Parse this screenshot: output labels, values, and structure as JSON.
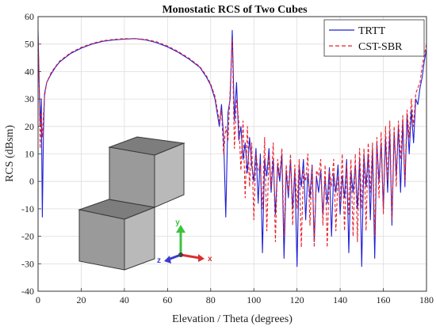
{
  "chart_data": {
    "type": "line",
    "title": "Monostatic RCS of Two Cubes",
    "xlabel": "Elevation / Theta (degrees)",
    "ylabel": "RCS (dBsm)",
    "xlim": [
      0,
      180
    ],
    "ylim": [
      -40,
      60
    ],
    "xticks": [
      0,
      20,
      40,
      60,
      80,
      100,
      120,
      140,
      160,
      180
    ],
    "yticks": [
      -40,
      -30,
      -20,
      -10,
      0,
      10,
      20,
      30,
      40,
      50,
      60
    ],
    "grid": true,
    "legend_position": "top-right",
    "series": [
      {
        "name": "TRTT",
        "color": "#1f1fd6",
        "style": "solid",
        "x": [
          0,
          0.5,
          1,
          1.5,
          2,
          2.5,
          3,
          4,
          6,
          8,
          10,
          15,
          20,
          25,
          30,
          35,
          40,
          45,
          50,
          55,
          60,
          65,
          70,
          75,
          78,
          80,
          82,
          84,
          85,
          86,
          87,
          88,
          89,
          90,
          91,
          92,
          93,
          94,
          95,
          96,
          97,
          98,
          99,
          100,
          101,
          102,
          103,
          104,
          105,
          106,
          107,
          108,
          109,
          110,
          111,
          112,
          113,
          114,
          115,
          116,
          117,
          118,
          119,
          120,
          121,
          122,
          123,
          124,
          125,
          126,
          127,
          128,
          129,
          130,
          131,
          132,
          133,
          134,
          135,
          136,
          137,
          138,
          139,
          140,
          141,
          142,
          143,
          144,
          145,
          146,
          147,
          148,
          149,
          150,
          151,
          152,
          153,
          154,
          155,
          156,
          157,
          158,
          159,
          160,
          161,
          162,
          163,
          164,
          165,
          166,
          167,
          168,
          169,
          170,
          171,
          172,
          173,
          174,
          175,
          176,
          177,
          178,
          179,
          180
        ],
        "y": [
          55,
          35,
          20,
          30,
          -13,
          18,
          32,
          36,
          39,
          41.5,
          43.5,
          46.5,
          48.5,
          50,
          51,
          51.5,
          51.8,
          52,
          51.5,
          50.5,
          49,
          47,
          44.5,
          41.5,
          38,
          35,
          30,
          20,
          28,
          16,
          -13,
          25,
          30,
          55,
          22,
          36,
          15,
          20,
          8,
          14,
          3,
          16,
          6,
          0,
          12,
          -8,
          10,
          -26,
          8,
          2,
          12,
          -4,
          8,
          -12,
          6,
          0,
          10,
          -28,
          4,
          -6,
          8,
          -10,
          4,
          -31,
          6,
          -2,
          8,
          -14,
          3,
          -6,
          6,
          -22,
          2,
          -4,
          4,
          -12,
          1,
          -8,
          5,
          -20,
          3,
          -4,
          6,
          -12,
          2,
          -6,
          8,
          -26,
          4,
          -4,
          6,
          -10,
          8,
          -31,
          10,
          -2,
          10,
          -14,
          12,
          -28,
          14,
          0,
          14,
          -10,
          16,
          -4,
          18,
          -16,
          18,
          2,
          20,
          -4,
          22,
          -2,
          24,
          10,
          26,
          14,
          30,
          28,
          34,
          38,
          44,
          48
        ]
      },
      {
        "name": "CST-SBR",
        "color": "#e8202a",
        "style": "dashed",
        "x": [
          0,
          0.5,
          1,
          1.5,
          2,
          2.5,
          3,
          4,
          6,
          8,
          10,
          15,
          20,
          25,
          30,
          35,
          40,
          45,
          50,
          55,
          60,
          65,
          70,
          75,
          78,
          80,
          82,
          84,
          85,
          86,
          87,
          88,
          89,
          90,
          91,
          92,
          93,
          94,
          95,
          96,
          97,
          98,
          99,
          100,
          101,
          102,
          103,
          104,
          105,
          106,
          107,
          108,
          109,
          110,
          111,
          112,
          113,
          114,
          115,
          116,
          117,
          118,
          119,
          120,
          121,
          122,
          123,
          124,
          125,
          126,
          127,
          128,
          129,
          130,
          131,
          132,
          133,
          134,
          135,
          136,
          137,
          138,
          139,
          140,
          141,
          142,
          143,
          144,
          145,
          146,
          147,
          148,
          149,
          150,
          151,
          152,
          153,
          154,
          155,
          156,
          157,
          158,
          159,
          160,
          161,
          162,
          163,
          164,
          165,
          166,
          167,
          168,
          169,
          170,
          171,
          172,
          173,
          174,
          175,
          176,
          177,
          178,
          179,
          180
        ],
        "y": [
          53,
          38,
          12,
          25,
          16,
          24,
          31,
          36,
          39.5,
          41.8,
          43.8,
          46.8,
          48.8,
          50.2,
          51.2,
          51.7,
          52,
          52,
          51.7,
          50.8,
          49.3,
          47.3,
          44.8,
          41.8,
          38.5,
          35.5,
          31,
          22,
          26,
          10,
          20,
          15,
          33,
          52,
          12,
          30,
          22,
          4,
          22,
          -6,
          20,
          -2,
          14,
          -14,
          10,
          4,
          6,
          -10,
          16,
          -18,
          10,
          -2,
          14,
          -22,
          8,
          2,
          12,
          -20,
          6,
          -4,
          10,
          -16,
          6,
          -10,
          8,
          -24,
          4,
          0,
          10,
          -16,
          6,
          -24,
          4,
          2,
          8,
          -16,
          6,
          -24,
          4,
          -2,
          8,
          -18,
          2,
          -8,
          10,
          -18,
          6,
          -12,
          8,
          -20,
          10,
          -22,
          12,
          -10,
          12,
          -18,
          14,
          -4,
          14,
          -20,
          16,
          -6,
          18,
          -12,
          20,
          0,
          22,
          -14,
          20,
          -2,
          22,
          8,
          24,
          0,
          26,
          16,
          30,
          20,
          32,
          34,
          36,
          42,
          46,
          50
        ]
      }
    ]
  }
}
